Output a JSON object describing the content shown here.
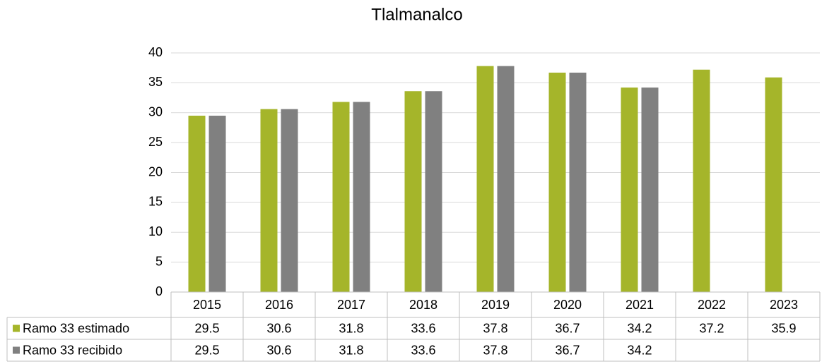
{
  "chart_data": {
    "type": "bar",
    "title": "Tlalmanalco",
    "categories": [
      "2015",
      "2016",
      "2017",
      "2018",
      "2019",
      "2020",
      "2021",
      "2022",
      "2023"
    ],
    "series": [
      {
        "name": "Ramo 33 estimado",
        "color": "#a5b52a",
        "values": [
          29.5,
          30.6,
          31.8,
          33.6,
          37.8,
          36.7,
          34.2,
          37.2,
          35.9
        ]
      },
      {
        "name": "Ramo 33 recibido",
        "color": "#808080",
        "values": [
          29.5,
          30.6,
          31.8,
          33.6,
          37.8,
          36.7,
          34.2,
          null,
          null
        ]
      }
    ],
    "ylim": [
      0,
      40
    ],
    "yticks": [
      0,
      5,
      10,
      15,
      20,
      25,
      30,
      35,
      40
    ],
    "grid": true,
    "data_table": true
  }
}
